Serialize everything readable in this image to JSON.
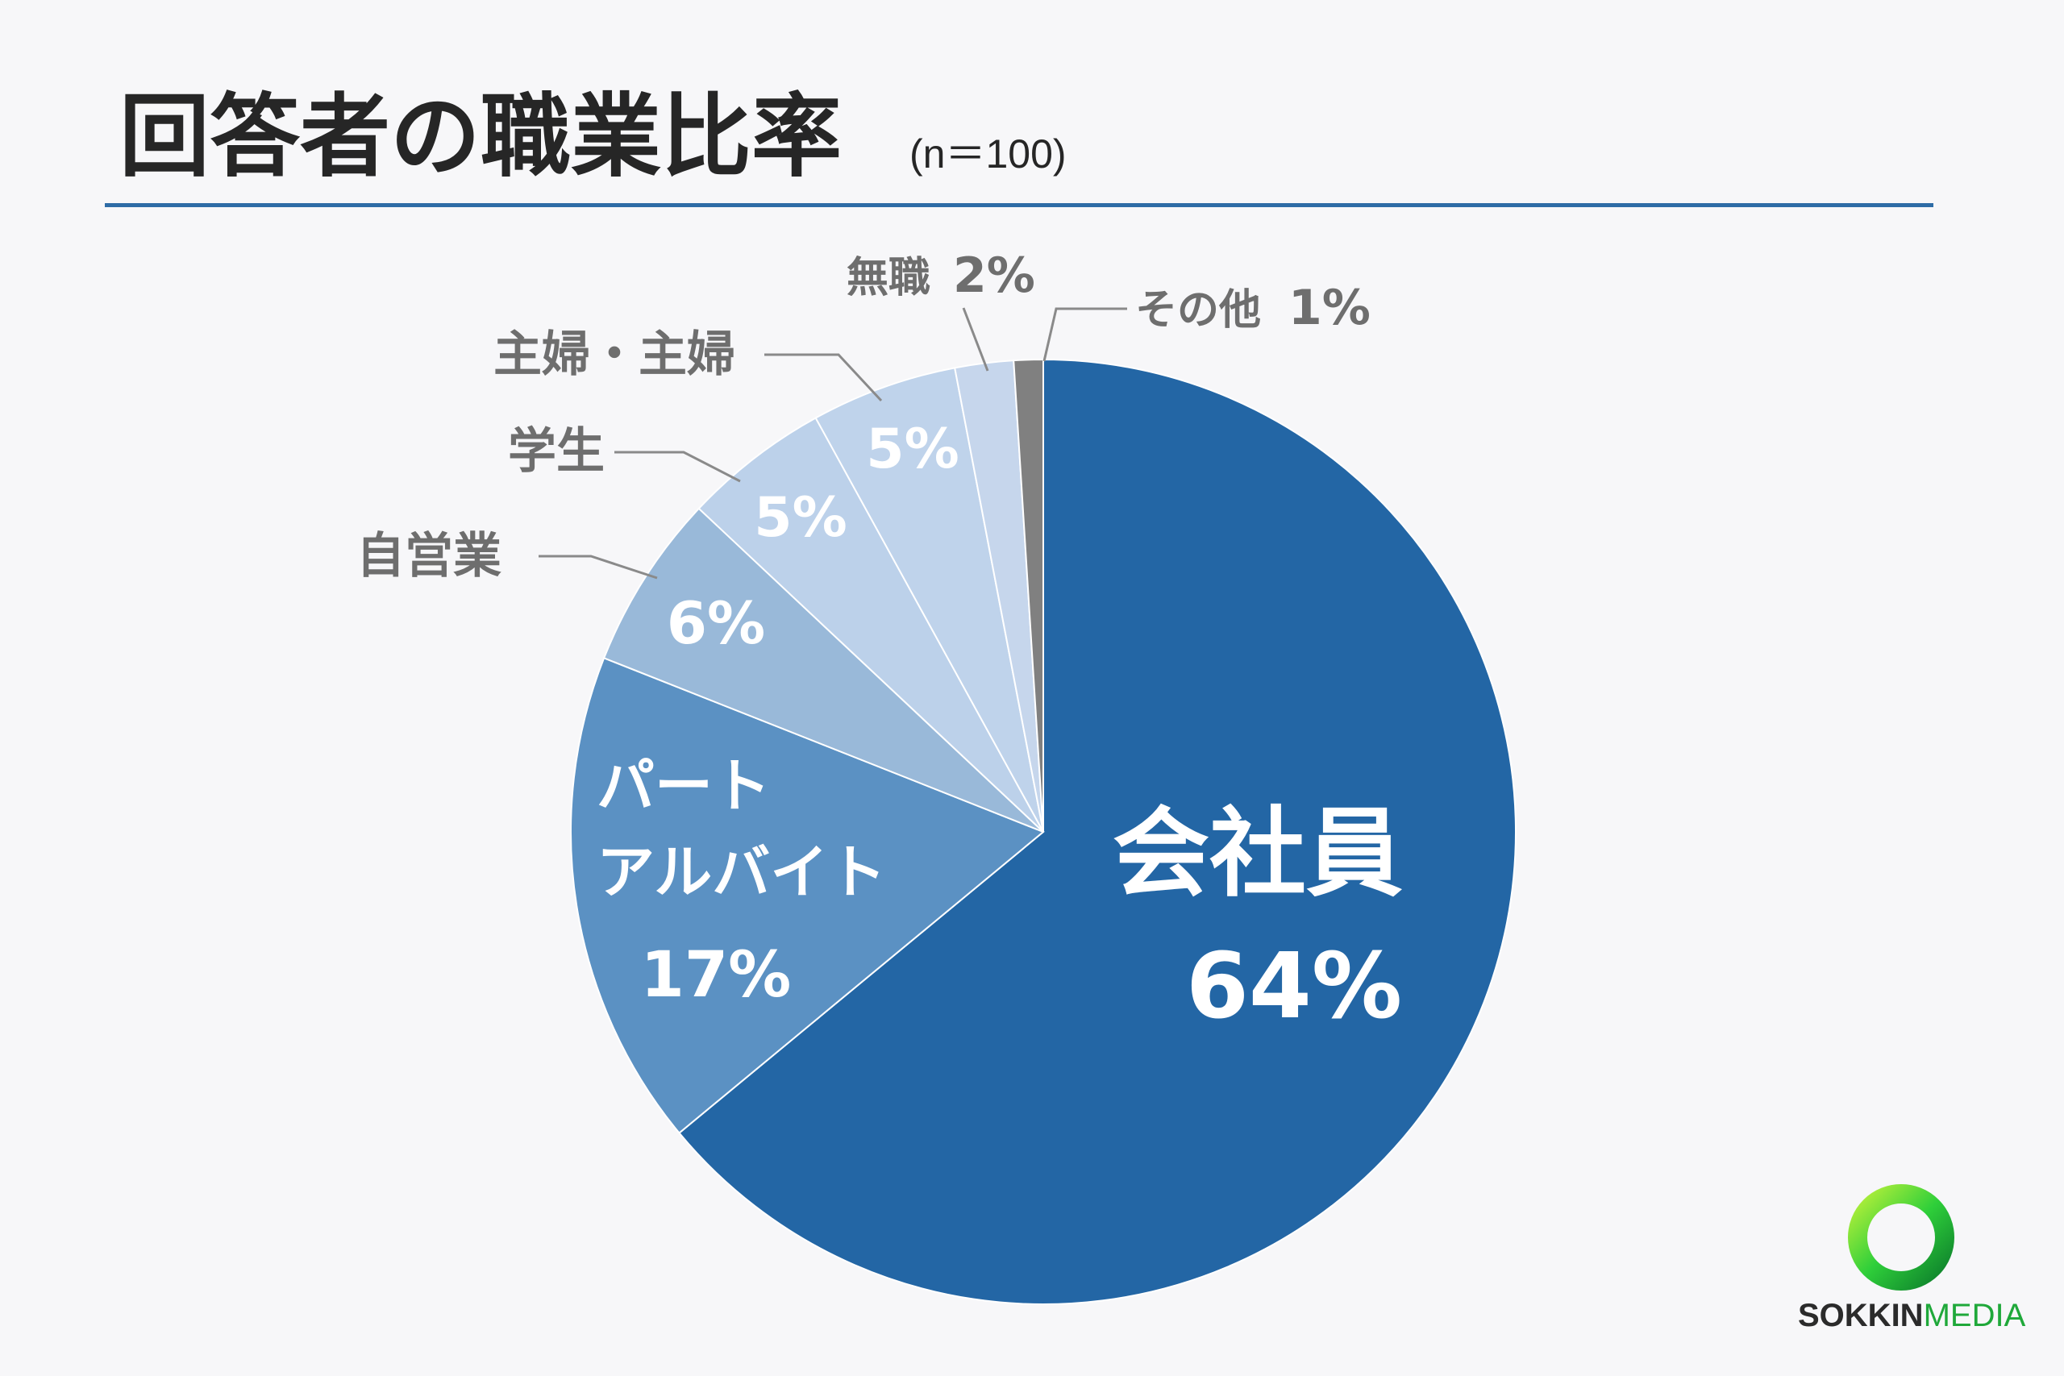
{
  "header": {
    "title": "回答者の職業比率",
    "subtitle": "(n＝100)",
    "rule_color": "#2e6ca6"
  },
  "chart_data": {
    "type": "pie",
    "categories": [
      "会社員",
      "パート アルバイト",
      "自営業",
      "学生",
      "主婦・主婦",
      "無職",
      "その他"
    ],
    "values": [
      64,
      17,
      6,
      5,
      5,
      2,
      1
    ],
    "unit": "%",
    "colors": [
      "#2366a5",
      "#5b91c3",
      "#99b9d9",
      "#bcd1ea",
      "#bfd3eb",
      "#c6d6ec",
      "#808080"
    ],
    "labels": {
      "kaishain": {
        "name": "会社員",
        "pct": "64%"
      },
      "part": {
        "name1": "パート",
        "name2": "アルバイト",
        "pct": "17%"
      },
      "jieigyo": {
        "name": "自営業",
        "pct": "6%"
      },
      "gakusei": {
        "name": "学生",
        "pct": "5%"
      },
      "shufu": {
        "name": "主婦・主婦",
        "pct": "5%"
      },
      "mushoku": {
        "name": "無職",
        "pct": "2%"
      },
      "sonota": {
        "name": "その他",
        "pct": "1%"
      }
    }
  },
  "logo": {
    "part1": "SOKKIN",
    "part2": "MEDIA",
    "color1": "#2b2b2b",
    "color2": "#1fa83a"
  }
}
